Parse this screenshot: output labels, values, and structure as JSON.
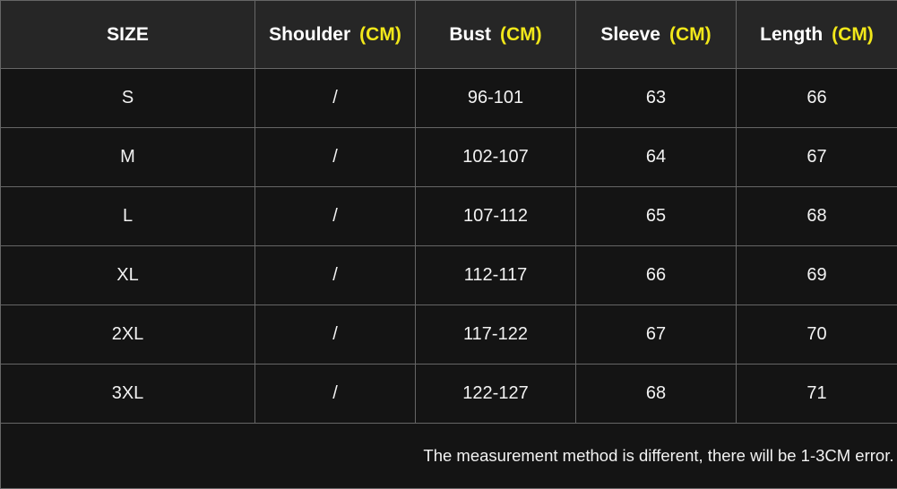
{
  "table": {
    "headers": [
      {
        "label": "SIZE",
        "unit": ""
      },
      {
        "label": "Shoulder",
        "unit": "(CM)"
      },
      {
        "label": "Bust",
        "unit": "(CM)"
      },
      {
        "label": "Sleeve",
        "unit": "(CM)"
      },
      {
        "label": "Length",
        "unit": "(CM)"
      }
    ],
    "rows": [
      [
        "S",
        "/",
        "96-101",
        "63",
        "66"
      ],
      [
        "M",
        "/",
        "102-107",
        "64",
        "67"
      ],
      [
        "L",
        "/",
        "107-112",
        "65",
        "68"
      ],
      [
        "XL",
        "/",
        "112-117",
        "66",
        "69"
      ],
      [
        "2XL",
        "/",
        "117-122",
        "67",
        "70"
      ],
      [
        "3XL",
        "/",
        "122-127",
        "68",
        "71"
      ]
    ],
    "note": "The measurement method is different, there will be 1-3CM error."
  },
  "colors": {
    "header_bg": "#262626",
    "row_bg": "#141414",
    "unit_accent": "#f2e81a",
    "grid": "#666666"
  }
}
